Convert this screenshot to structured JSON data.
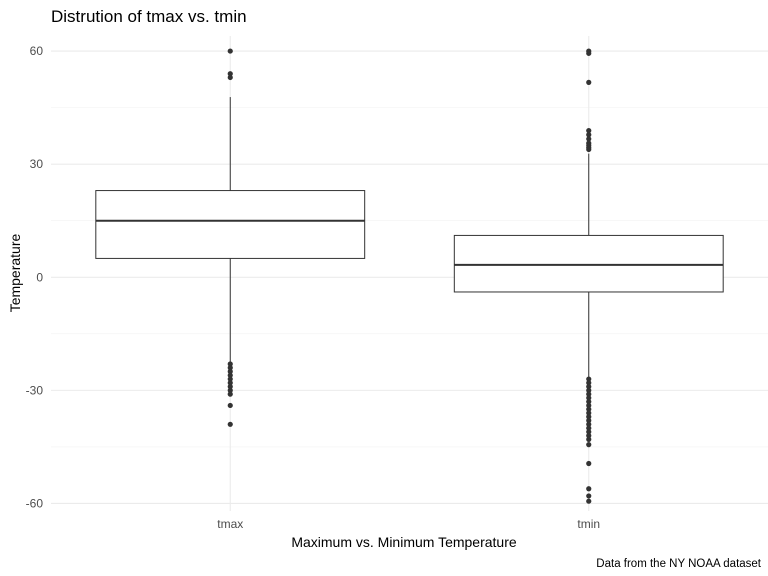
{
  "chart_data": {
    "type": "boxplot",
    "title": "Distrution of tmax vs. tmin",
    "xlabel": "Maximum vs. Minimum Temperature",
    "ylabel": "Temperature",
    "caption": "Data from the NY NOAA dataset",
    "categories": [
      "tmax",
      "tmin"
    ],
    "ylim": [
      -62,
      64
    ],
    "y_ticks": [
      -60,
      -30,
      0,
      30,
      60
    ],
    "y_tick_labels": [
      "-60",
      "-30",
      "0",
      "30",
      "60"
    ],
    "grid": true,
    "boxes": [
      {
        "name": "tmax",
        "whisker_low": -22.5,
        "q1": 5,
        "median": 15,
        "q3": 23,
        "whisker_high": 47.8,
        "outliers": [
          60,
          54,
          53,
          -23,
          -24,
          -25,
          -26,
          -27,
          -28,
          -29,
          -30,
          -31,
          -34,
          -39
        ]
      },
      {
        "name": "tmin",
        "whisker_low": -26.7,
        "q1": -3.9,
        "median": 3.3,
        "q3": 11.1,
        "whisker_high": 32.8,
        "outliers": [
          60,
          59.4,
          51.7,
          38.9,
          37.8,
          36.7,
          35.6,
          35,
          34.4,
          33.9,
          -27,
          -28,
          -29,
          -30,
          -31,
          -32,
          -33,
          -34,
          -35,
          -36,
          -37,
          -38,
          -39,
          -40,
          -41,
          -42,
          -43,
          -44.4,
          -49.4,
          -56.1,
          -58,
          -59.4
        ]
      }
    ]
  }
}
